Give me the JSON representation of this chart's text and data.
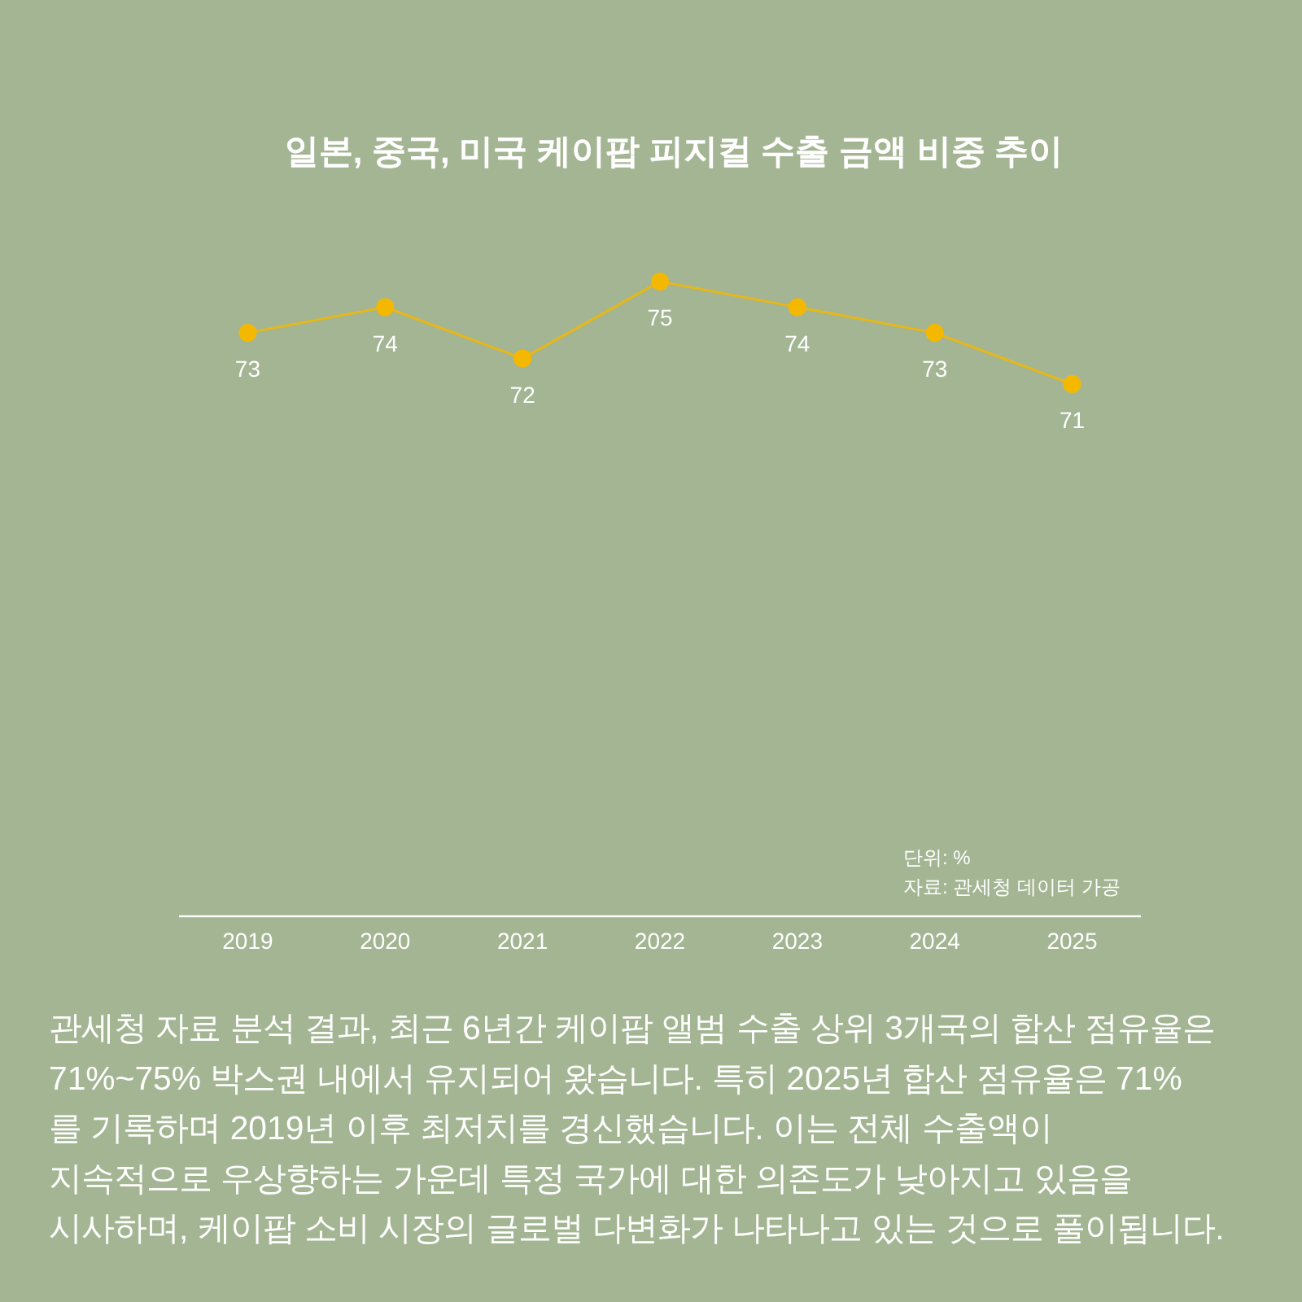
{
  "chart_data": {
    "type": "line",
    "title": "일본, 중국, 미국 케이팝 피지컬 수출 금액 비중 추이",
    "categories": [
      "2019",
      "2020",
      "2021",
      "2022",
      "2023",
      "2024",
      "2025"
    ],
    "values": [
      73,
      74,
      72,
      75,
      74,
      73,
      71
    ],
    "color": "#f5b800",
    "tick_labels": "x",
    "marker": "circle",
    "line_style": "solid",
    "data_labels": true,
    "annotations": [
      "단위: %\n자료: 관세청 데이터 가공",
      "관세청 자료 분석 결과, 최근 6년간 케이팝 앨범 수출 상위 3개국의 합산 점유율은\n71%~75% 박스권 내에서 유지되어 왔습니다. 특히 2025년 합산 점유율은 71%\n를 기록하며 2019년 이후 최저치를 경신했습니다. 이는 전체 수출액이\n지속적으로 우상향하는 가운데 특정 국가에 대한 의존도가 낮아지고 있음을\n시사하며, 케이팝 소비 시장의 글로벌 다변화가 나타나고 있는 것으로 풀이됩니다."
    ]
  }
}
